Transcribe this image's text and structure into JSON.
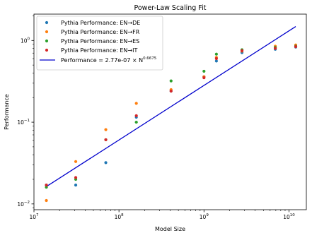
{
  "chart_data": {
    "type": "scatter",
    "title": "Power-Law Scaling Fit",
    "xlabel": "Model Size",
    "ylabel": "Performance",
    "xscale": "log",
    "yscale": "log",
    "xlim": [
      10000000.0,
      16000000000.0
    ],
    "ylim": [
      0.0085,
      2.1
    ],
    "grid": false,
    "legend_position": "top-left",
    "x_ticks": [
      {
        "value": 10000000.0,
        "base": "10",
        "exp": "7"
      },
      {
        "value": 100000000.0,
        "base": "10",
        "exp": "8"
      },
      {
        "value": 1000000000.0,
        "base": "10",
        "exp": "9"
      },
      {
        "value": 10000000000.0,
        "base": "10",
        "exp": "10"
      }
    ],
    "y_ticks": [
      {
        "value": 0.01,
        "base": "10",
        "exp": "−2"
      },
      {
        "value": 0.1,
        "base": "10",
        "exp": "−1"
      },
      {
        "value": 1,
        "base": "10",
        "exp": "0"
      }
    ],
    "series": [
      {
        "name": "Pythia Performance: EN→DE",
        "color": "#1f77b4",
        "x": [
          14000000.0,
          31000000.0,
          70000000.0,
          160000000.0,
          410000000.0,
          1000000000.0,
          1400000000.0,
          2800000000.0,
          6900000000.0,
          12000000000.0
        ],
        "y": [
          0.017,
          0.017,
          0.032,
          0.115,
          0.24,
          0.36,
          0.56,
          0.71,
          0.78,
          0.83
        ]
      },
      {
        "name": "Pythia Performance: EN→FR",
        "color": "#ff7f0e",
        "x": [
          14000000.0,
          31000000.0,
          70000000.0,
          160000000.0,
          410000000.0,
          1000000000.0,
          1400000000.0,
          2800000000.0,
          6900000000.0,
          12000000000.0
        ],
        "y": [
          0.011,
          0.033,
          0.081,
          0.17,
          0.25,
          0.36,
          0.62,
          0.74,
          0.85,
          0.88
        ]
      },
      {
        "name": "Pythia Performance: EN→ES",
        "color": "#2ca02c",
        "x": [
          14000000.0,
          31000000.0,
          70000000.0,
          160000000.0,
          410000000.0,
          1000000000.0,
          1400000000.0,
          2800000000.0,
          6900000000.0,
          12000000000.0
        ],
        "y": [
          0.016,
          0.02,
          0.061,
          0.1,
          0.32,
          0.42,
          0.68,
          0.77,
          0.82,
          0.85
        ]
      },
      {
        "name": "Pythia Performance: EN→IT",
        "color": "#d62728",
        "x": [
          14000000.0,
          31000000.0,
          70000000.0,
          160000000.0,
          410000000.0,
          1000000000.0,
          1400000000.0,
          2800000000.0,
          6900000000.0,
          12000000000.0
        ],
        "y": [
          0.017,
          0.021,
          0.061,
          0.12,
          0.24,
          0.35,
          0.6,
          0.75,
          0.8,
          0.84
        ]
      }
    ],
    "fit": {
      "label": "Performance = 2.77e-07 × N",
      "exponent_label": "0.6675",
      "color": "#0000cc",
      "coefficient": 2.77e-07,
      "exponent": 0.6675,
      "x_range": [
        14000000.0,
        12000000000.0
      ]
    }
  }
}
